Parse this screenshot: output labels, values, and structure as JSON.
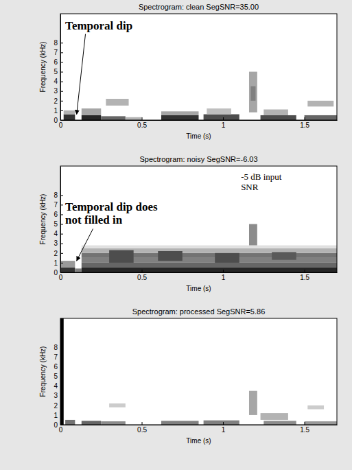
{
  "chart_data": [
    {
      "type": "spectrogram",
      "title": "Spectrogram: clean  SegSNR=35.00",
      "xlabel": "Time (s)",
      "ylabel": "Frequency (kHz)",
      "xlim": [
        0,
        1.7
      ],
      "xticks": [
        0,
        0.5,
        1,
        1.5
      ],
      "ylim": [
        0,
        11
      ],
      "yticks": [
        0,
        1,
        2,
        3,
        4,
        5,
        6,
        7,
        8
      ],
      "clim": [
        0,
        1
      ],
      "cells": [
        [
          0.02,
          0.09,
          0,
          0.6,
          0.8
        ],
        [
          0.02,
          0.09,
          0.6,
          1.0,
          0.3
        ],
        [
          0.13,
          0.25,
          0,
          0.5,
          0.85
        ],
        [
          0.13,
          0.25,
          0.5,
          1.2,
          0.35
        ],
        [
          0.25,
          0.4,
          0,
          0.4,
          0.6
        ],
        [
          0.28,
          0.42,
          1.5,
          2.2,
          0.3
        ],
        [
          0.4,
          0.5,
          0,
          0.3,
          0.3
        ],
        [
          0.62,
          0.85,
          0,
          0.5,
          0.8
        ],
        [
          0.62,
          0.85,
          0.5,
          0.9,
          0.35
        ],
        [
          0.88,
          1.1,
          0,
          0.6,
          0.7
        ],
        [
          0.9,
          1.05,
          0.6,
          1.2,
          0.25
        ],
        [
          1.16,
          1.21,
          0.8,
          5.0,
          0.35
        ],
        [
          1.17,
          1.2,
          2.0,
          3.5,
          0.5
        ],
        [
          1.23,
          1.45,
          0,
          0.5,
          0.7
        ],
        [
          1.25,
          1.4,
          0.5,
          1.1,
          0.3
        ],
        [
          1.5,
          1.7,
          0,
          0.5,
          0.6
        ],
        [
          1.52,
          1.68,
          1.4,
          2.0,
          0.3
        ]
      ],
      "annotations": [
        {
          "lines": [
            "Temporal dip"
          ],
          "xytext": [
            0.03,
            9.4
          ],
          "xy": [
            0.1,
            0.6
          ]
        }
      ]
    },
    {
      "type": "spectrogram",
      "title": "Spectrogram: noisy  SegSNR=-6.03",
      "xlabel": "Time (s)",
      "ylabel": "Frequency (kHz)",
      "xlim": [
        0,
        1.7
      ],
      "xticks": [
        0,
        0.5,
        1,
        1.5
      ],
      "ylim": [
        0,
        11
      ],
      "yticks": [
        0,
        1,
        2,
        3,
        4,
        5,
        6,
        7,
        8
      ],
      "clim": [
        0,
        1
      ],
      "cells": [
        [
          0.0,
          0.09,
          0,
          0.5,
          0.8
        ],
        [
          0.0,
          0.09,
          0.5,
          1.2,
          0.4
        ],
        [
          0.09,
          0.13,
          0,
          0.4,
          0.5
        ],
        [
          0.13,
          1.7,
          0,
          0.5,
          0.85
        ],
        [
          0.13,
          1.7,
          0.5,
          1.0,
          0.6
        ],
        [
          0.13,
          1.7,
          1.0,
          1.5,
          0.5
        ],
        [
          0.13,
          1.7,
          1.5,
          2.0,
          0.55
        ],
        [
          0.13,
          1.7,
          2.0,
          2.5,
          0.3
        ],
        [
          0.13,
          1.7,
          2.5,
          2.8,
          0.12
        ],
        [
          0.3,
          0.45,
          1.0,
          2.3,
          0.7
        ],
        [
          0.6,
          0.75,
          1.2,
          2.2,
          0.7
        ],
        [
          0.95,
          1.1,
          1.0,
          2.0,
          0.7
        ],
        [
          1.3,
          1.45,
          1.3,
          2.1,
          0.65
        ],
        [
          1.16,
          1.21,
          2.8,
          5.0,
          0.45
        ]
      ],
      "annotations": [
        {
          "lines": [
            "Temporal dip does",
            "not filled in"
          ],
          "xytext": [
            0.03,
            6.4
          ],
          "xy": [
            0.1,
            1.2
          ]
        },
        {
          "lines": [
            "-5 dB input",
            "SNR"
          ],
          "xytext": [
            1.11,
            9.6
          ]
        }
      ]
    },
    {
      "type": "spectrogram",
      "title": "Spectrogram: processed  SegSNR=5.86",
      "xlabel": "Time (s)",
      "ylabel": "Frequency (kHz)",
      "xlim": [
        0,
        1.7
      ],
      "xticks": [
        0,
        0.5,
        1,
        1.5
      ],
      "ylim": [
        0,
        11
      ],
      "yticks": [
        0,
        1,
        2,
        3,
        4,
        5,
        6,
        7,
        8
      ],
      "clim": [
        0,
        1
      ],
      "cells": [
        [
          0,
          0.02,
          0,
          11,
          1.0
        ],
        [
          0.03,
          0.09,
          0,
          0.5,
          0.55
        ],
        [
          0.13,
          0.25,
          0,
          0.4,
          0.6
        ],
        [
          0.25,
          0.4,
          0,
          0.35,
          0.45
        ],
        [
          0.3,
          0.4,
          1.8,
          2.2,
          0.2
        ],
        [
          0.62,
          0.85,
          0,
          0.4,
          0.5
        ],
        [
          0.88,
          1.1,
          0,
          0.45,
          0.5
        ],
        [
          1.16,
          1.21,
          1.0,
          3.5,
          0.35
        ],
        [
          1.23,
          1.4,
          0.5,
          1.2,
          0.3
        ],
        [
          1.25,
          1.45,
          0,
          0.4,
          0.45
        ],
        [
          1.5,
          1.7,
          0,
          0.35,
          0.4
        ],
        [
          1.52,
          1.62,
          1.6,
          2.0,
          0.2
        ]
      ],
      "annotations": []
    }
  ]
}
